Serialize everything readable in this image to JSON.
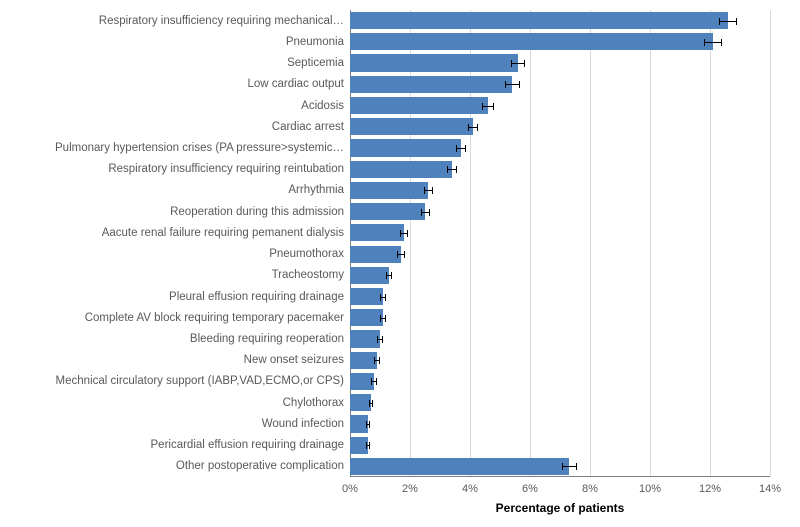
{
  "chart": {
    "type": "bar-horizontal",
    "x_title": "Percentage of patients",
    "x_title_fontsize": 12,
    "x_title_fontweight": "bold",
    "xmin": 0,
    "xmax": 14,
    "xtick_step": 2,
    "xtick_suffix": "%",
    "bar_color": "#4f81bd",
    "grid_color": "#d9d9d9",
    "axis_color": "#808080",
    "axis_label_color": "#595959",
    "axis_label_fontsize": 11,
    "cat_label_fontsize": 11.5,
    "background_color": "#ffffff",
    "error_color": "#000000",
    "categories": [
      {
        "label": "Respiratory insufficiency requiring mechanical…",
        "value": 12.6,
        "err": 0.3
      },
      {
        "label": "Pneumonia",
        "value": 12.1,
        "err": 0.3
      },
      {
        "label": "Septicemia",
        "value": 5.6,
        "err": 0.22
      },
      {
        "label": "Low cardiac output",
        "value": 5.4,
        "err": 0.25
      },
      {
        "label": "Acidosis",
        "value": 4.6,
        "err": 0.2
      },
      {
        "label": "Cardiac arrest",
        "value": 4.1,
        "err": 0.18
      },
      {
        "label": "Pulmonary hypertension crises (PA pressure>systemic…",
        "value": 3.7,
        "err": 0.18
      },
      {
        "label": "Respiratory insufficiency requiring reintubation",
        "value": 3.4,
        "err": 0.18
      },
      {
        "label": "Arrhythmia",
        "value": 2.6,
        "err": 0.15
      },
      {
        "label": "Reoperation during this admission",
        "value": 2.5,
        "err": 0.15
      },
      {
        "label": "Aacute renal failure requiring pemanent dialysis",
        "value": 1.8,
        "err": 0.12
      },
      {
        "label": "Pneumothorax",
        "value": 1.7,
        "err": 0.12
      },
      {
        "label": "Tracheostomy",
        "value": 1.3,
        "err": 0.1
      },
      {
        "label": "Pleural effusion requiring drainage",
        "value": 1.1,
        "err": 0.1
      },
      {
        "label": "Complete AV block requiring temporary pacemaker",
        "value": 1.1,
        "err": 0.1
      },
      {
        "label": "Bleeding requiring reoperation",
        "value": 1.0,
        "err": 0.1
      },
      {
        "label": "New onset seizures",
        "value": 0.9,
        "err": 0.09
      },
      {
        "label": "Mechnical circulatory support (IABP,VAD,ECMO,or CPS)",
        "value": 0.8,
        "err": 0.09
      },
      {
        "label": "Chylothorax",
        "value": 0.7,
        "err": 0.08
      },
      {
        "label": "Wound infection",
        "value": 0.6,
        "err": 0.08
      },
      {
        "label": "Pericardial effusion requiring drainage",
        "value": 0.6,
        "err": 0.08
      },
      {
        "label": "Other postoperative complication",
        "value": 7.3,
        "err": 0.25
      }
    ]
  }
}
